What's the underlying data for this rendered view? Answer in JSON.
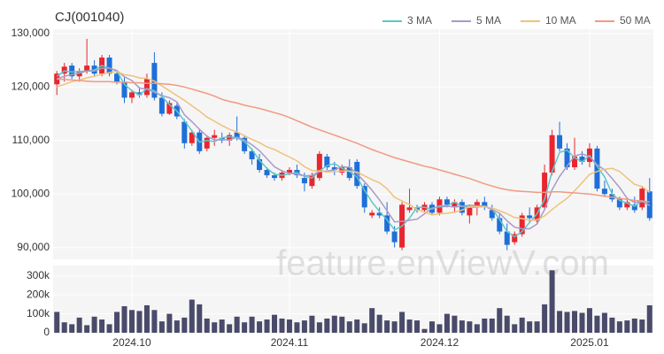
{
  "watermark": "feature.enViewV.com",
  "chart_data": [
    {
      "type": "candlestick",
      "title": "CJ(001040)",
      "categories": [
        null,
        null,
        null,
        null,
        null,
        null,
        null,
        null,
        null,
        null,
        "2024.10",
        null,
        null,
        null,
        null,
        null,
        null,
        null,
        null,
        null,
        null,
        null,
        null,
        null,
        null,
        null,
        null,
        null,
        null,
        null,
        null,
        "2024.11",
        null,
        null,
        null,
        null,
        null,
        null,
        null,
        null,
        null,
        null,
        null,
        null,
        null,
        null,
        null,
        null,
        null,
        null,
        null,
        "2024.12",
        null,
        null,
        null,
        null,
        null,
        null,
        null,
        null,
        null,
        null,
        null,
        null,
        null,
        null,
        null,
        null,
        null,
        null,
        null,
        "2025.01",
        null,
        null,
        null,
        null,
        null,
        null,
        null,
        null
      ],
      "open": [
        120500,
        122500,
        124000,
        122000,
        123000,
        124000,
        122500,
        125500,
        122500,
        121000,
        118000,
        119000,
        118500,
        124500,
        118000,
        115000,
        116500,
        113500,
        109500,
        111500,
        108500,
        110500,
        110500,
        110000,
        111500,
        110500,
        108000,
        106500,
        104500,
        103500,
        103000,
        104000,
        104500,
        103000,
        101500,
        103000,
        107000,
        105000,
        104000,
        105000,
        106000,
        101500,
        96000,
        96500,
        96000,
        93000,
        90000,
        97000,
        97500,
        97000,
        98000,
        96500,
        99000,
        97500,
        98500,
        96000,
        97500,
        98500,
        97000,
        95500,
        93000,
        91000,
        92500,
        96000,
        95000,
        97500,
        104000,
        111000,
        108500,
        105000,
        107000,
        106000,
        108500,
        101000,
        100000,
        99000,
        97500,
        98000,
        97500,
        100500
      ],
      "high": [
        123000,
        124500,
        124500,
        123500,
        129000,
        125000,
        126000,
        126000,
        123000,
        122000,
        119500,
        120000,
        122500,
        126500,
        119000,
        117500,
        117000,
        114000,
        112000,
        112000,
        111000,
        112000,
        111500,
        111500,
        114500,
        111000,
        108500,
        107500,
        105000,
        104000,
        104500,
        105000,
        105500,
        104000,
        104000,
        108000,
        107500,
        106000,
        105500,
        106500,
        106500,
        102000,
        97000,
        97500,
        98500,
        94000,
        98500,
        101000,
        98000,
        98500,
        98500,
        99500,
        99500,
        99000,
        99000,
        98000,
        99000,
        99500,
        98000,
        96500,
        94500,
        93000,
        96500,
        97500,
        98000,
        105500,
        112000,
        113500,
        109500,
        110500,
        108000,
        109500,
        109000,
        102500,
        101000,
        99500,
        99000,
        99500,
        101500,
        103000
      ],
      "low": [
        118500,
        121000,
        121500,
        121000,
        122500,
        122000,
        122000,
        122000,
        120500,
        117000,
        117000,
        118000,
        118000,
        117500,
        114500,
        114800,
        114000,
        108500,
        109000,
        107500,
        108000,
        109000,
        109500,
        109000,
        110000,
        107500,
        105500,
        104000,
        103000,
        102500,
        102500,
        103500,
        103000,
        100500,
        101000,
        102500,
        104500,
        103500,
        103500,
        102500,
        101000,
        96500,
        95500,
        95500,
        92500,
        90000,
        89500,
        96500,
        96500,
        96500,
        96000,
        96000,
        97500,
        96500,
        96000,
        94500,
        96000,
        97000,
        95000,
        92500,
        89500,
        90500,
        92000,
        94500,
        94500,
        97000,
        103500,
        108000,
        104500,
        104500,
        105500,
        105000,
        100500,
        99500,
        98500,
        97000,
        97000,
        96500,
        97000,
        95000
      ],
      "close": [
        122500,
        123800,
        122000,
        123000,
        124000,
        122500,
        125500,
        122500,
        121000,
        118000,
        119000,
        118500,
        121500,
        118000,
        115000,
        117000,
        114500,
        109500,
        111500,
        108000,
        110500,
        111000,
        110000,
        111000,
        110500,
        108000,
        106500,
        104500,
        103500,
        103000,
        104000,
        104500,
        103500,
        102000,
        103500,
        107500,
        105000,
        104500,
        105000,
        103000,
        101500,
        97500,
        96500,
        96000,
        93000,
        91000,
        98000,
        97500,
        97000,
        98000,
        96500,
        99000,
        98000,
        98500,
        96500,
        97500,
        98500,
        97500,
        95500,
        93000,
        90500,
        92500,
        96000,
        95500,
        97500,
        104000,
        111000,
        108500,
        105000,
        107000,
        106000,
        108500,
        101000,
        100000,
        99000,
        97500,
        98500,
        97000,
        101000,
        95500
      ],
      "up_color": "#e8262f",
      "down_color": "#1e6fd9",
      "series": [
        {
          "name": "3 MA",
          "color": "#5cc8c8",
          "values": [
            122000,
            123000,
            122800,
            122900,
            123000,
            123200,
            124000,
            123500,
            123000,
            120500,
            119300,
            118500,
            119700,
            119300,
            118200,
            116700,
            115500,
            113700,
            111800,
            109700,
            110000,
            109800,
            110500,
            110700,
            110500,
            109800,
            108300,
            106300,
            104800,
            103700,
            103500,
            103800,
            104000,
            103300,
            103000,
            104300,
            105300,
            105700,
            104800,
            104200,
            103200,
            100700,
            98500,
            96700,
            95200,
            93300,
            94000,
            95500,
            97500,
            97500,
            97200,
            97800,
            97800,
            98500,
            97700,
            97500,
            97500,
            97800,
            97200,
            95300,
            93000,
            92000,
            93000,
            94700,
            96300,
            99000,
            104200,
            107800,
            108200,
            106800,
            106000,
            107200,
            105200,
            103200,
            100000,
            98800,
            98300,
            97700,
            98800,
            97800
          ]
        },
        {
          "name": "5 MA",
          "color": "#a99ac8",
          "values": [
            121500,
            122000,
            122300,
            122600,
            123000,
            123000,
            123500,
            123500,
            123100,
            121900,
            121200,
            119800,
            119600,
            119000,
            118400,
            118000,
            117200,
            114800,
            113500,
            112100,
            110800,
            110100,
            110200,
            110100,
            110600,
            110100,
            109200,
            108100,
            106600,
            105100,
            104300,
            103900,
            103700,
            103400,
            103500,
            104200,
            104300,
            104500,
            105100,
            105000,
            103800,
            102300,
            100700,
            98900,
            96900,
            94800,
            94900,
            95100,
            95300,
            96300,
            97400,
            97600,
            97700,
            97600,
            97700,
            97900,
            97800,
            97700,
            97100,
            96400,
            95000,
            93800,
            93500,
            93500,
            94400,
            97100,
            100800,
            103300,
            105200,
            107100,
            107500,
            107000,
            105500,
            104500,
            102900,
            101200,
            99200,
            98400,
            98600,
            97900
          ]
        },
        {
          "name": "10 MA",
          "color": "#f0c27b",
          "values": [
            120000,
            120500,
            121000,
            121300,
            121700,
            122000,
            122400,
            122700,
            122900,
            122300,
            122100,
            121700,
            121600,
            121100,
            120200,
            119300,
            118400,
            117500,
            116500,
            115500,
            114400,
            113600,
            112800,
            112100,
            111600,
            110900,
            110200,
            109600,
            108800,
            108300,
            107600,
            106900,
            106200,
            105100,
            104400,
            104300,
            104100,
            104200,
            104300,
            104300,
            104100,
            103400,
            102700,
            102100,
            101000,
            99400,
            98700,
            98000,
            97100,
            96600,
            96100,
            96300,
            96400,
            96600,
            97000,
            97600,
            97600,
            97600,
            97400,
            96900,
            96300,
            95600,
            95400,
            95100,
            95200,
            95900,
            97100,
            98200,
            99200,
            100600,
            102100,
            103700,
            104200,
            104600,
            104800,
            104200,
            103000,
            101800,
            101400,
            100300
          ]
        },
        {
          "name": "50 MA",
          "color": "#f19a80",
          "values": [
            121500,
            121400,
            121300,
            121200,
            121100,
            121000,
            121000,
            121000,
            120900,
            120900,
            120800,
            120800,
            120700,
            120700,
            120600,
            120500,
            120300,
            120000,
            119600,
            119200,
            118800,
            118300,
            117700,
            117300,
            117000,
            116600,
            116300,
            116000,
            115600,
            115200,
            114800,
            114300,
            113700,
            113100,
            112500,
            112000,
            111500,
            111000,
            110500,
            110000,
            109500,
            108900,
            108300,
            107800,
            107300,
            106800,
            106400,
            106000,
            105600,
            105200,
            104900,
            104500,
            104100,
            103700,
            103300,
            102900,
            102400,
            101900,
            101500,
            101100,
            100800,
            100600,
            100500,
            100400,
            100300,
            100300,
            100400,
            100400,
            100300,
            100200,
            100100,
            100000,
            99800,
            99600,
            99400,
            99200,
            99000,
            98800,
            98700,
            98500
          ]
        }
      ],
      "ylim": [
        87800,
        130800
      ],
      "yticks": [
        {
          "value": 90000,
          "label": "90,000"
        },
        {
          "value": 100000,
          "label": "100,000"
        },
        {
          "value": 110000,
          "label": "110,000"
        },
        {
          "value": 120000,
          "label": "120,000"
        },
        {
          "value": 130000,
          "label": "130,000"
        }
      ],
      "grid": true,
      "legend": "top-right"
    },
    {
      "type": "bar",
      "color": "#4a4a6a",
      "values": [
        110000,
        55000,
        45000,
        80000,
        40000,
        85000,
        70000,
        45000,
        110000,
        140000,
        120000,
        115000,
        145000,
        120000,
        60000,
        100000,
        65000,
        80000,
        175000,
        150000,
        75000,
        55000,
        70000,
        45000,
        85000,
        55000,
        85000,
        60000,
        70000,
        95000,
        75000,
        70000,
        55000,
        65000,
        90000,
        55000,
        75000,
        90000,
        85000,
        60000,
        70000,
        50000,
        130000,
        95000,
        65000,
        60000,
        110000,
        70000,
        65000,
        20000,
        60000,
        45000,
        100000,
        90000,
        65000,
        60000,
        45000,
        75000,
        75000,
        130000,
        90000,
        45000,
        80000,
        60000,
        60000,
        150000,
        330000,
        115000,
        110000,
        115000,
        105000,
        130000,
        90000,
        105000,
        80000,
        60000,
        65000,
        75000,
        70000,
        145000
      ],
      "ylim": [
        0,
        355000
      ],
      "yticks": [
        0,
        {
          "value": 100000,
          "label": "100k"
        },
        {
          "value": 200000,
          "label": "200k"
        },
        {
          "value": 300000,
          "label": "300k"
        }
      ],
      "grid": true
    }
  ]
}
